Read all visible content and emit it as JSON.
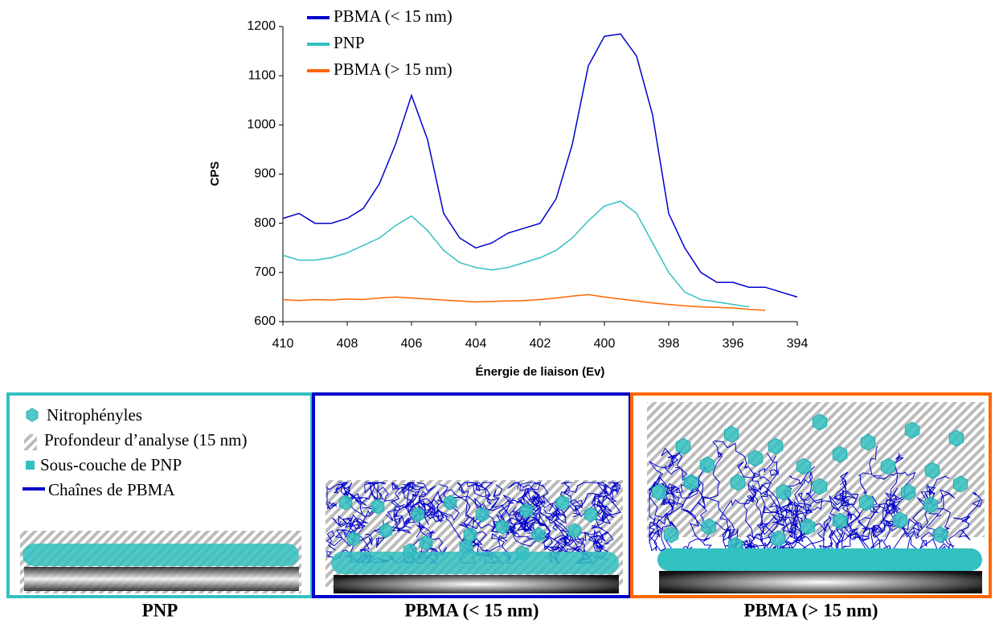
{
  "chart_data": {
    "type": "line",
    "y_label": "CPS",
    "x_label": "Énergie de liaison (Ev)",
    "x": [
      410,
      409.5,
      409,
      408.5,
      408,
      407.5,
      407,
      406.5,
      406,
      405.5,
      405,
      404.5,
      404,
      403.5,
      403,
      402.5,
      402,
      401.5,
      401,
      400.5,
      400,
      399.5,
      399,
      398.5,
      398,
      397.5,
      397,
      396.5,
      396,
      395.5,
      395,
      394.5,
      394
    ],
    "series": [
      {
        "name": "PBMA (< 15 nm)",
        "color": "#0000cc",
        "values": [
          810,
          820,
          800,
          800,
          810,
          830,
          880,
          960,
          1060,
          970,
          820,
          770,
          750,
          760,
          780,
          790,
          800,
          850,
          960,
          1120,
          1180,
          1185,
          1140,
          1020,
          820,
          750,
          700,
          680,
          680,
          670,
          670,
          660,
          650
        ]
      },
      {
        "name": "PNP",
        "color": "#33c0c0",
        "values": [
          735,
          725,
          725,
          730,
          740,
          755,
          770,
          795,
          815,
          785,
          745,
          720,
          710,
          705,
          710,
          720,
          730,
          745,
          770,
          805,
          835,
          845,
          820,
          760,
          700,
          660,
          645,
          640,
          635,
          630,
          null,
          null,
          null
        ]
      },
      {
        "name": "PBMA (> 15 nm)",
        "color": "#ff6600",
        "values": [
          645,
          643,
          645,
          644,
          646,
          645,
          648,
          650,
          648,
          646,
          644,
          642,
          640,
          641,
          642,
          643,
          645,
          648,
          652,
          655,
          650,
          646,
          642,
          638,
          635,
          632,
          630,
          629,
          628,
          625,
          623,
          null,
          null
        ]
      }
    ],
    "xlim": [
      410,
      394
    ],
    "xticks": [
      410,
      408,
      406,
      404,
      402,
      400,
      398,
      396,
      394
    ],
    "ylim": [
      600,
      1200
    ],
    "yticks": [
      600,
      700,
      800,
      900,
      1000,
      1100,
      1200
    ],
    "legend": "upper left",
    "grid": false
  },
  "diagram": {
    "legend": [
      "Nitrophényles",
      "Profondeur d’analyse (15 nm)",
      "Sous-couche de PNP",
      "Chaînes de PBMA"
    ],
    "panels": [
      {
        "caption": "PNP",
        "color": "#33c0c0"
      },
      {
        "caption": "PBMA (< 15 nm)",
        "color": "#0000cc"
      },
      {
        "caption": "PBMA (> 15 nm)",
        "color": "#ff6600"
      }
    ]
  }
}
